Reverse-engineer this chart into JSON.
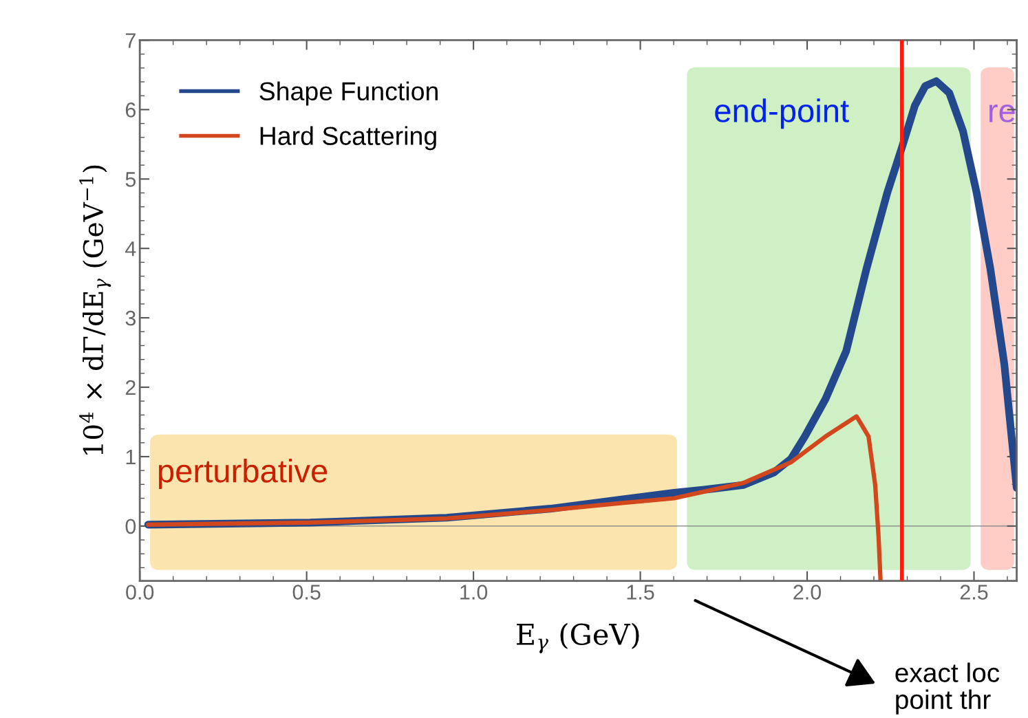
{
  "chart_data": {
    "type": "line",
    "xlabel": "E$_{γ}$ (GeV)",
    "ylabel": "10$^{4}$ × dΓ/dE$_{γ}$ (GeV$^{−1}$)",
    "series": [
      {
        "name": "Shape Function",
        "color": "#24488c",
        "x": [
          0.025,
          0.51,
          0.92,
          1.23,
          1.44,
          1.601,
          1.704,
          1.808,
          1.9,
          1.952,
          1.993,
          2.055,
          2.117,
          2.178,
          2.24,
          2.287,
          2.323,
          2.354,
          2.387,
          2.426,
          2.467,
          2.508,
          2.549,
          2.591,
          2.628
        ],
        "values": [
          0.02,
          0.05,
          0.12,
          0.25,
          0.38,
          0.48,
          0.53,
          0.59,
          0.77,
          0.97,
          1.29,
          1.83,
          2.52,
          3.71,
          4.8,
          5.5,
          6.06,
          6.34,
          6.41,
          6.24,
          5.69,
          4.8,
          3.71,
          2.33,
          0.55
        ]
      },
      {
        "name": "Hard Scattering",
        "color": "#d2481c",
        "x": [
          0.025,
          0.51,
          0.92,
          1.23,
          1.44,
          1.601,
          1.808,
          1.952,
          2.055,
          2.148,
          2.184,
          2.204,
          2.214,
          2.22
        ],
        "values": [
          0.02,
          0.05,
          0.11,
          0.23,
          0.33,
          0.4,
          0.62,
          0.92,
          1.29,
          1.58,
          1.29,
          0.59,
          -0.15,
          -0.79
        ]
      }
    ],
    "xlim": [
      0,
      2.628
    ],
    "ylim": [
      -0.79,
      7
    ],
    "xticks": [
      {
        "value": 0,
        "label": "0.0"
      },
      0.5,
      {
        "value": 1,
        "label": "1.0"
      },
      1.5,
      {
        "value": 2,
        "label": "2.0"
      },
      2.5
    ],
    "yticks": [
      0,
      1,
      2,
      3,
      4,
      5,
      6,
      7
    ],
    "bands": [
      {
        "axis": "x",
        "from": 0.031,
        "to": 1.61,
        "label": "perturbative",
        "color": "#fbe4ae"
      },
      {
        "axis": "x",
        "from": 1.64,
        "to": 2.49,
        "label": "end-point",
        "color": "#cff0c4"
      },
      {
        "axis": "x",
        "from": 2.52,
        "to": 2.62,
        "label": "re",
        "color": "#ffcdc6"
      }
    ],
    "ref_lines": [
      {
        "axis": "y",
        "value": 0,
        "color": "#808080"
      },
      {
        "axis": "x",
        "value": 2.284,
        "color": "#ff1a10"
      }
    ],
    "annotations": [
      "exact loc\npoint thr"
    ],
    "legend": "top left",
    "grid": false,
    "line_style": "solid",
    "marker": "none"
  }
}
